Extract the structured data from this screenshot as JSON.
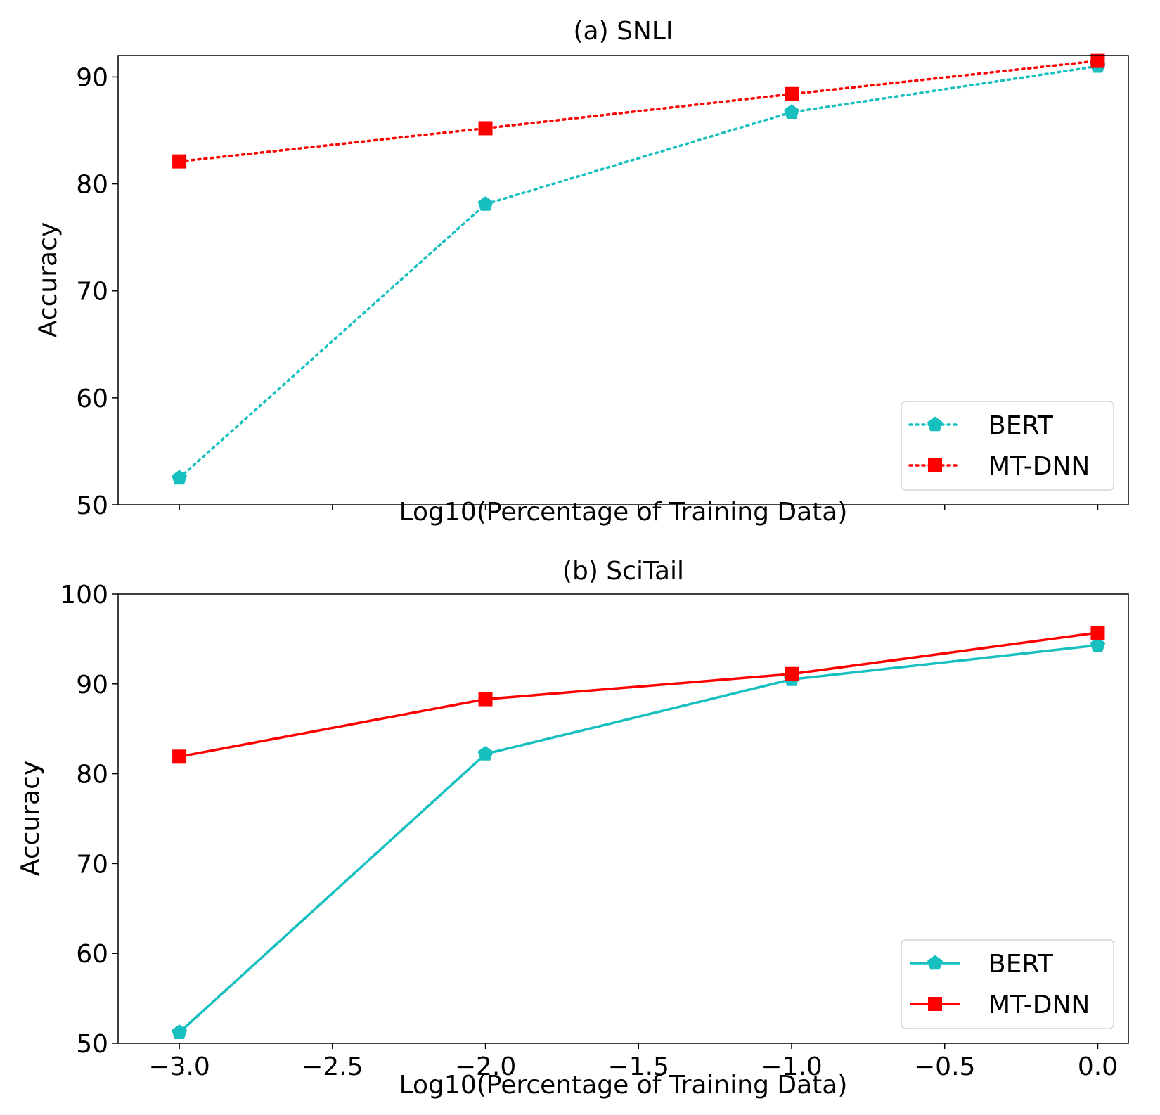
{
  "chart_data": [
    {
      "type": "line",
      "title": "(a) SNLI",
      "xlabel": "Log10(Percentage of Training Data)",
      "ylabel": "Accuracy",
      "xlim": [
        -3.2,
        0.1
      ],
      "ylim": [
        50,
        92
      ],
      "xticks": [
        -3.0,
        -2.5,
        -2.0,
        -1.5,
        -1.0,
        -0.5,
        0.0
      ],
      "xtick_labels_shown": false,
      "yticks": [
        50,
        60,
        70,
        80,
        90
      ],
      "ytick_labels": [
        "50",
        "60",
        "70",
        "80",
        "90"
      ],
      "line_style": "dotted",
      "legend_position": "lower-right",
      "series": [
        {
          "name": "BERT",
          "color": "#17bfbf",
          "marker": "pentagon",
          "x": [
            -3,
            -2,
            -1,
            0
          ],
          "y": [
            52.5,
            78.1,
            86.7,
            91.0
          ]
        },
        {
          "name": "MT-DNN",
          "color": "#ff0000",
          "marker": "square",
          "x": [
            -3,
            -2,
            -1,
            0
          ],
          "y": [
            82.1,
            85.2,
            88.4,
            91.5
          ]
        }
      ]
    },
    {
      "type": "line",
      "title": "(b) SciTail",
      "xlabel": "Log10(Percentage of Training Data)",
      "ylabel": "Accuracy",
      "xlim": [
        -3.2,
        0.1
      ],
      "ylim": [
        50,
        100
      ],
      "xticks": [
        -3.0,
        -2.5,
        -2.0,
        -1.5,
        -1.0,
        -0.5,
        0.0
      ],
      "xtick_labels": [
        "−3.0",
        "−2.5",
        "−2.0",
        "−1.5",
        "−1.0",
        "−0.5",
        "0.0"
      ],
      "yticks": [
        50,
        60,
        70,
        80,
        90,
        100
      ],
      "ytick_labels": [
        "50",
        "60",
        "70",
        "80",
        "90",
        "100"
      ],
      "line_style": "solid",
      "legend_position": "lower-right",
      "series": [
        {
          "name": "BERT",
          "color": "#17bfbf",
          "marker": "pentagon",
          "x": [
            -3,
            -2,
            -1,
            0
          ],
          "y": [
            51.2,
            82.2,
            90.5,
            94.3
          ]
        },
        {
          "name": "MT-DNN",
          "color": "#ff0000",
          "marker": "square",
          "x": [
            -3,
            -2,
            -1,
            0
          ],
          "y": [
            81.9,
            88.3,
            91.1,
            95.7
          ]
        }
      ]
    }
  ]
}
